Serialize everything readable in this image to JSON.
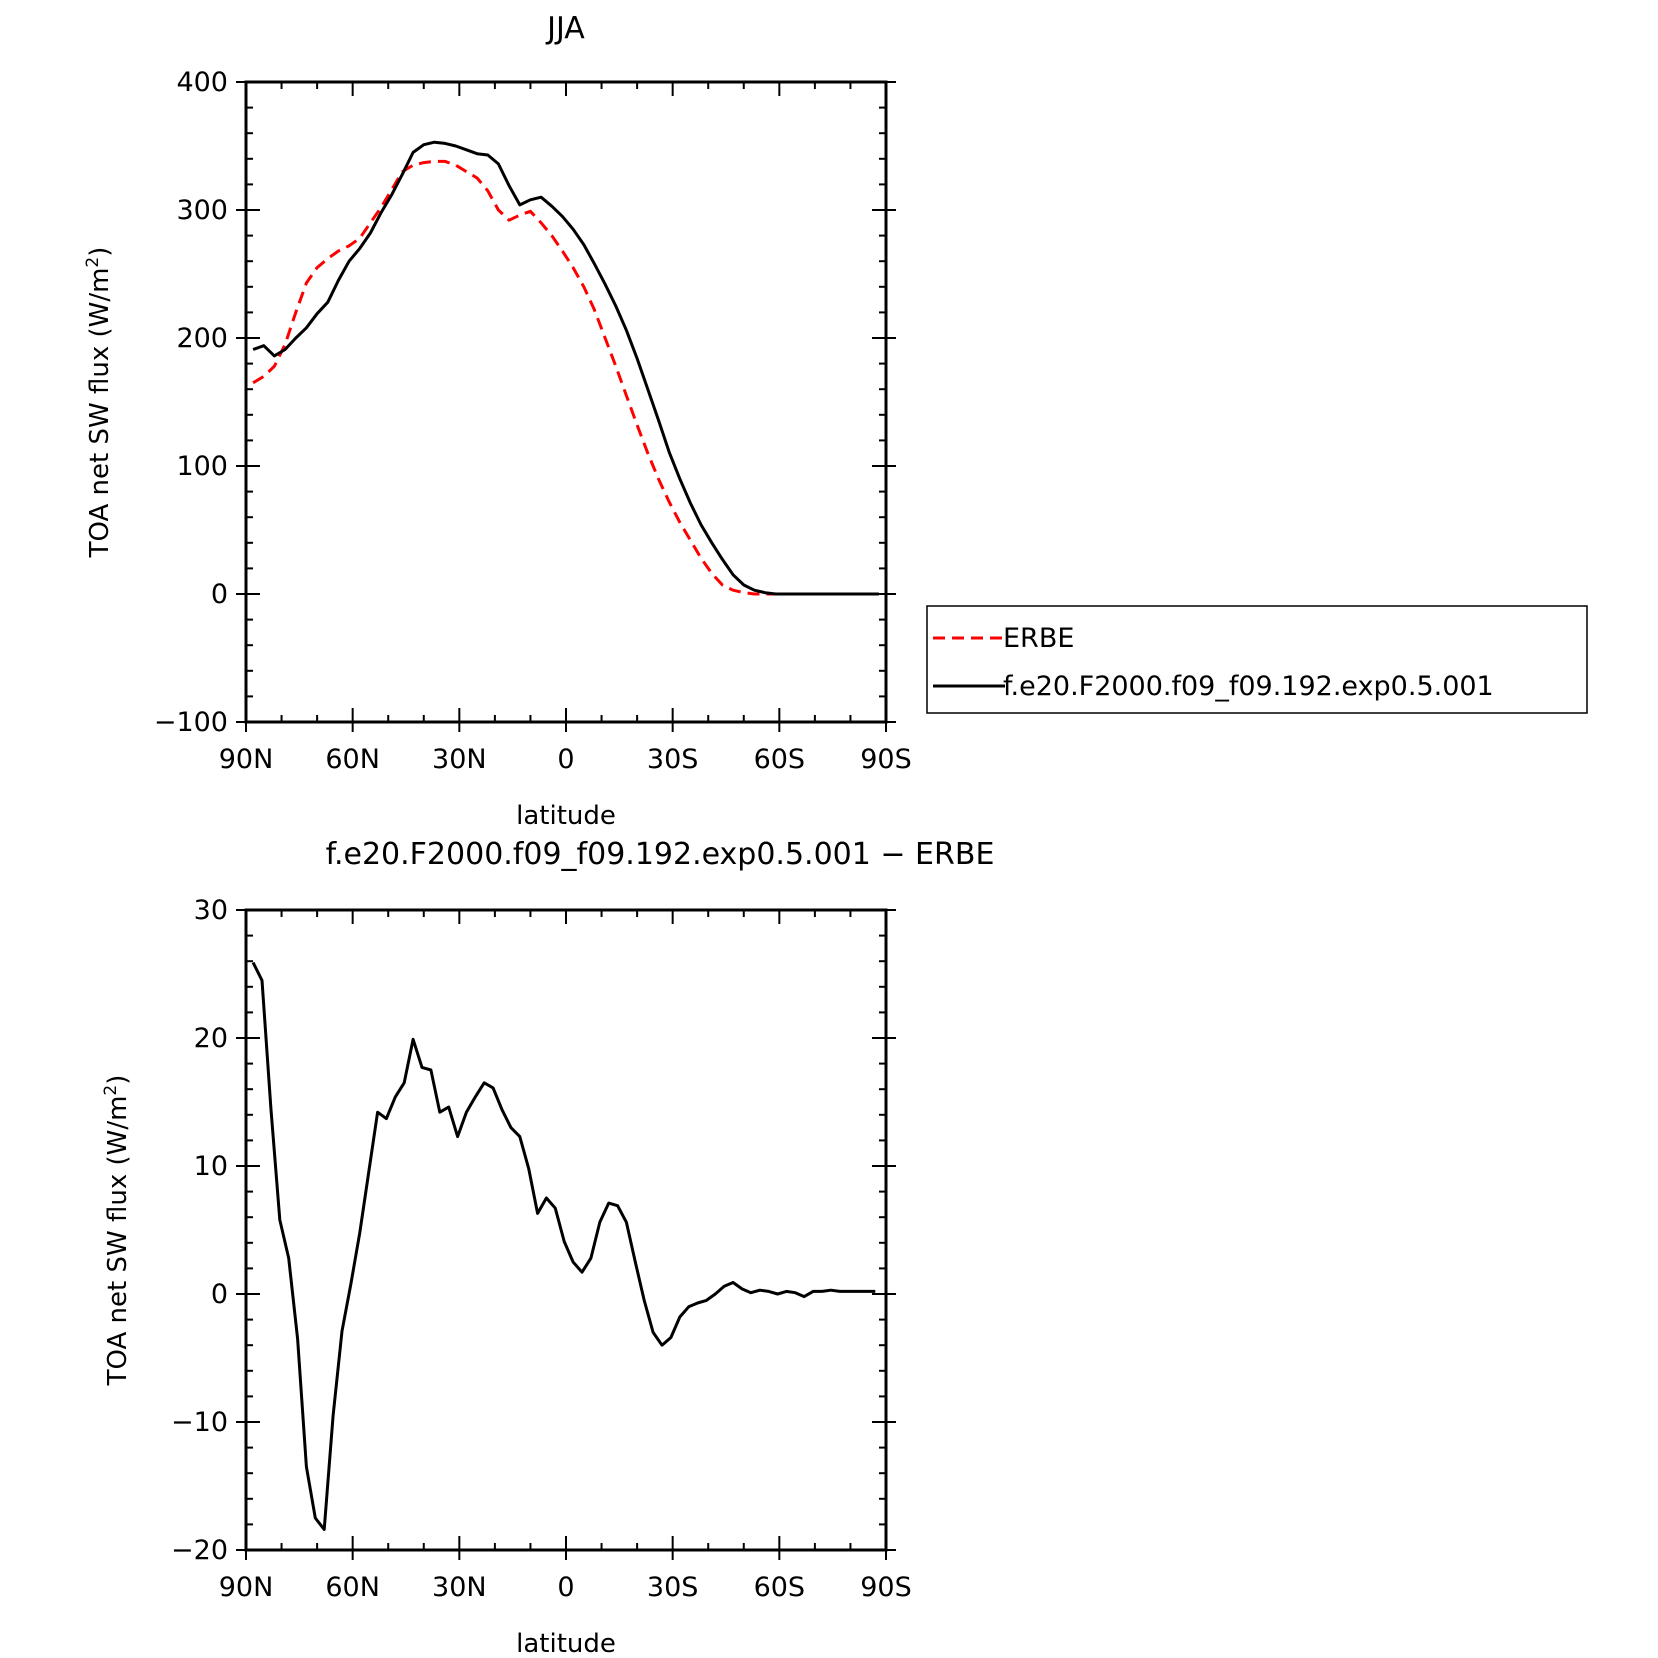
{
  "chart_data": [
    {
      "type": "line",
      "title": "JJA",
      "xlabel": "latitude",
      "ylabel": "TOA net SW flux (W/m",
      "ylabel_sup": "2",
      "ylabel_close": ")",
      "xlim": [
        90,
        -90
      ],
      "ylim": [
        -100,
        400
      ],
      "x_ticks": [
        {
          "value": 90,
          "label": "90N"
        },
        {
          "value": 60,
          "label": "60N"
        },
        {
          "value": 30,
          "label": "30N"
        },
        {
          "value": 0,
          "label": "0"
        },
        {
          "value": -30,
          "label": "30S"
        },
        {
          "value": -60,
          "label": "60S"
        },
        {
          "value": -90,
          "label": "90S"
        }
      ],
      "y_ticks": [
        {
          "value": 400,
          "label": "400"
        },
        {
          "value": 300,
          "label": "300"
        },
        {
          "value": 200,
          "label": "200"
        },
        {
          "value": 100,
          "label": "100"
        },
        {
          "value": 0,
          "label": "0"
        },
        {
          "value": -100,
          "label": "−100"
        }
      ],
      "legend_position": "right",
      "series": [
        {
          "name": "ERBE",
          "color": "#ff0000",
          "dash": "dashed",
          "x": [
            88,
            85,
            82,
            79,
            76,
            73,
            70,
            67,
            64,
            61,
            58,
            55,
            52,
            49,
            46,
            43,
            40,
            37,
            34,
            31,
            28,
            25,
            22,
            19,
            16,
            13,
            10,
            7,
            4,
            1,
            -2,
            -5,
            -8,
            -11,
            -14,
            -17,
            -20,
            -23,
            -26,
            -29,
            -32,
            -35,
            -38,
            -41,
            -44,
            -47,
            -50,
            -53,
            -56,
            -59,
            -62,
            -65,
            -68,
            -71,
            -74,
            -77,
            -80,
            -83,
            -86,
            -88
          ],
          "y": [
            165,
            170,
            178,
            195,
            220,
            243,
            255,
            262,
            268,
            272,
            278,
            290,
            302,
            316,
            330,
            335,
            337,
            338,
            338,
            335,
            330,
            325,
            315,
            300,
            292,
            296,
            299,
            290,
            280,
            268,
            255,
            240,
            222,
            200,
            178,
            155,
            132,
            110,
            90,
            72,
            56,
            42,
            28,
            16,
            7,
            3,
            1,
            0,
            0,
            0,
            0,
            0,
            0,
            0,
            0,
            0,
            0,
            0,
            0,
            0
          ]
        },
        {
          "name": "f.e20.F2000.f09_f09.192.exp0.5.001",
          "color": "#000000",
          "dash": "solid",
          "x": [
            88,
            85,
            82,
            79,
            76,
            73,
            70,
            67,
            64,
            61,
            58,
            55,
            52,
            49,
            46,
            43,
            40,
            37,
            34,
            31,
            28,
            25,
            22,
            19,
            16,
            13,
            10,
            7,
            4,
            1,
            -2,
            -5,
            -8,
            -11,
            -14,
            -17,
            -20,
            -23,
            -26,
            -29,
            -32,
            -35,
            -38,
            -41,
            -44,
            -47,
            -50,
            -53,
            -56,
            -59,
            -62,
            -65,
            -68,
            -71,
            -74,
            -77,
            -80,
            -83,
            -86,
            -88
          ],
          "y": [
            191,
            194,
            186,
            191,
            200,
            208,
            219,
            228,
            245,
            260,
            270,
            282,
            298,
            312,
            328,
            345,
            351,
            353,
            352,
            350,
            347,
            344,
            343,
            336,
            319,
            304,
            308,
            310,
            303,
            295,
            285,
            273,
            258,
            242,
            225,
            206,
            184,
            160,
            136,
            111,
            90,
            71,
            54,
            40,
            27,
            15,
            7,
            3,
            1,
            0,
            0,
            0,
            0,
            0,
            0,
            0,
            0,
            0,
            0,
            0
          ]
        }
      ]
    },
    {
      "type": "line",
      "title": "f.e20.F2000.f09_f09.192.exp0.5.001 − ERBE",
      "xlabel": "latitude",
      "ylabel": "TOA net SW flux (W/m",
      "ylabel_sup": "2",
      "ylabel_close": ")",
      "xlim": [
        90,
        -90
      ],
      "ylim": [
        -20,
        30
      ],
      "x_ticks": [
        {
          "value": 90,
          "label": "90N"
        },
        {
          "value": 60,
          "label": "60N"
        },
        {
          "value": 30,
          "label": "30N"
        },
        {
          "value": 0,
          "label": "0"
        },
        {
          "value": -30,
          "label": "30S"
        },
        {
          "value": -60,
          "label": "60S"
        },
        {
          "value": -90,
          "label": "90S"
        }
      ],
      "y_ticks": [
        {
          "value": 30,
          "label": "30"
        },
        {
          "value": 20,
          "label": "20"
        },
        {
          "value": 10,
          "label": "10"
        },
        {
          "value": 0,
          "label": "0"
        },
        {
          "value": -10,
          "label": "−10"
        },
        {
          "value": -20,
          "label": "−20"
        }
      ],
      "series": [
        {
          "color": "#000000",
          "dash": "solid",
          "x": [
            88,
            85.5,
            83,
            80.5,
            78,
            75.5,
            73,
            70.5,
            68,
            65.5,
            63,
            60.5,
            58,
            55.5,
            53,
            50.5,
            48,
            45.5,
            43,
            40.5,
            38,
            35.5,
            33,
            30.5,
            28,
            25.5,
            23,
            20.5,
            18,
            15.5,
            13,
            10.5,
            8,
            5.5,
            3,
            0.5,
            -2,
            -4.5,
            -7,
            -9.5,
            -12,
            -14.5,
            -17,
            -19.5,
            -22,
            -24.5,
            -27,
            -29.5,
            -32,
            -34.5,
            -37,
            -39.5,
            -42,
            -44.5,
            -47,
            -49.5,
            -52,
            -54.5,
            -57,
            -59.5,
            -62,
            -64.5,
            -67,
            -69.5,
            -72,
            -74.5,
            -77,
            -79.5,
            -82,
            -84.5,
            -87
          ],
          "y": [
            25.9,
            24.5,
            14.5,
            5.8,
            2.8,
            -3.5,
            -13.5,
            -17.5,
            -18.4,
            -9.5,
            -2.9,
            0.8,
            4.8,
            9.5,
            14.2,
            13.7,
            15.4,
            16.5,
            19.9,
            17.7,
            17.5,
            14.2,
            14.6,
            12.3,
            14.2,
            15.4,
            16.5,
            16.1,
            14.4,
            13.0,
            12.3,
            9.8,
            6.3,
            7.5,
            6.7,
            4.1,
            2.5,
            1.7,
            2.8,
            5.6,
            7.1,
            6.9,
            5.6,
            2.5,
            -0.5,
            -3.0,
            -4.0,
            -3.4,
            -1.8,
            -1.0,
            -0.7,
            -0.5,
            0.0,
            0.6,
            0.9,
            0.4,
            0.1,
            0.3,
            0.2,
            0.0,
            0.2,
            0.1,
            -0.2,
            0.2,
            0.2,
            0.3,
            0.2,
            0.2,
            0.2,
            0.2,
            0.2
          ]
        }
      ]
    }
  ]
}
